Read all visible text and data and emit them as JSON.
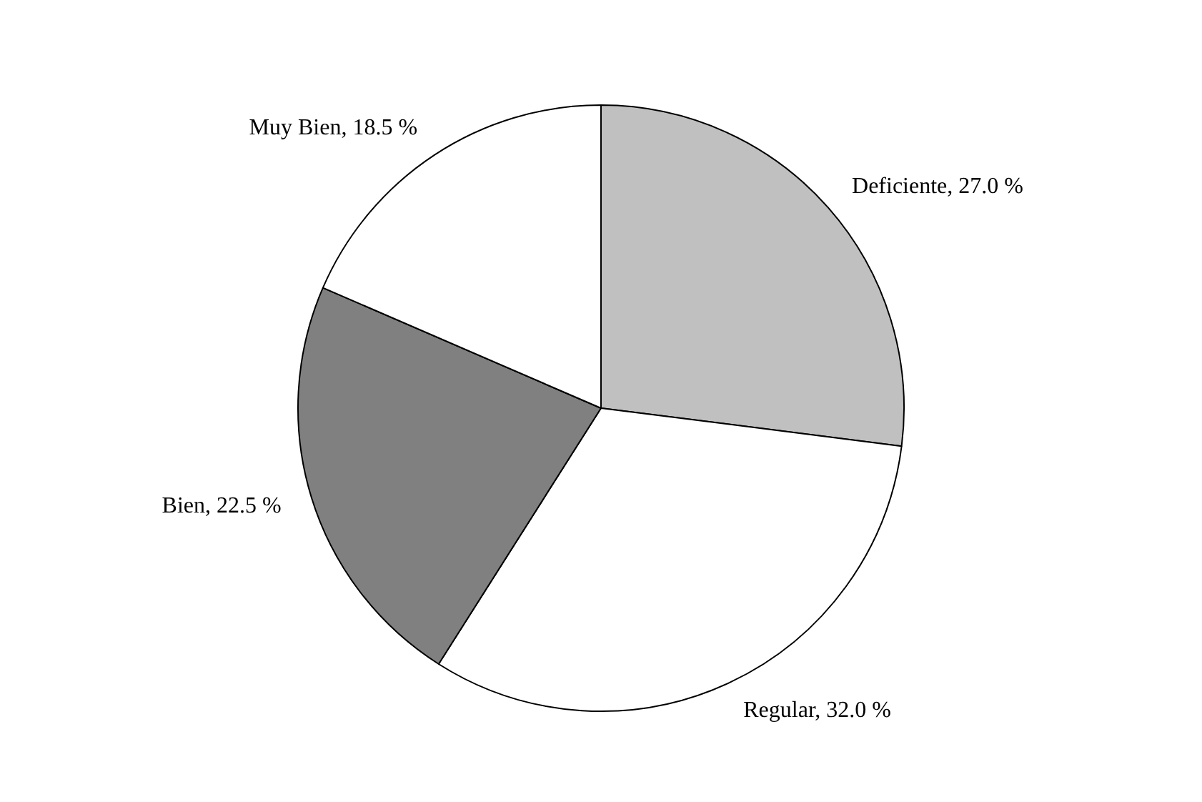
{
  "chart_data": {
    "type": "pie",
    "categories": [
      "Deficiente",
      "Regular",
      "Bien",
      "Muy Bien"
    ],
    "values": [
      27.0,
      32.0,
      22.5,
      18.5
    ],
    "colors": [
      "#c0c0c0",
      "#ffffff",
      "#808080",
      "#ffffff"
    ],
    "value_labels": [
      "27.0 %",
      "32.0 %",
      "22.5 %",
      "18.5 %"
    ],
    "legend": false
  }
}
